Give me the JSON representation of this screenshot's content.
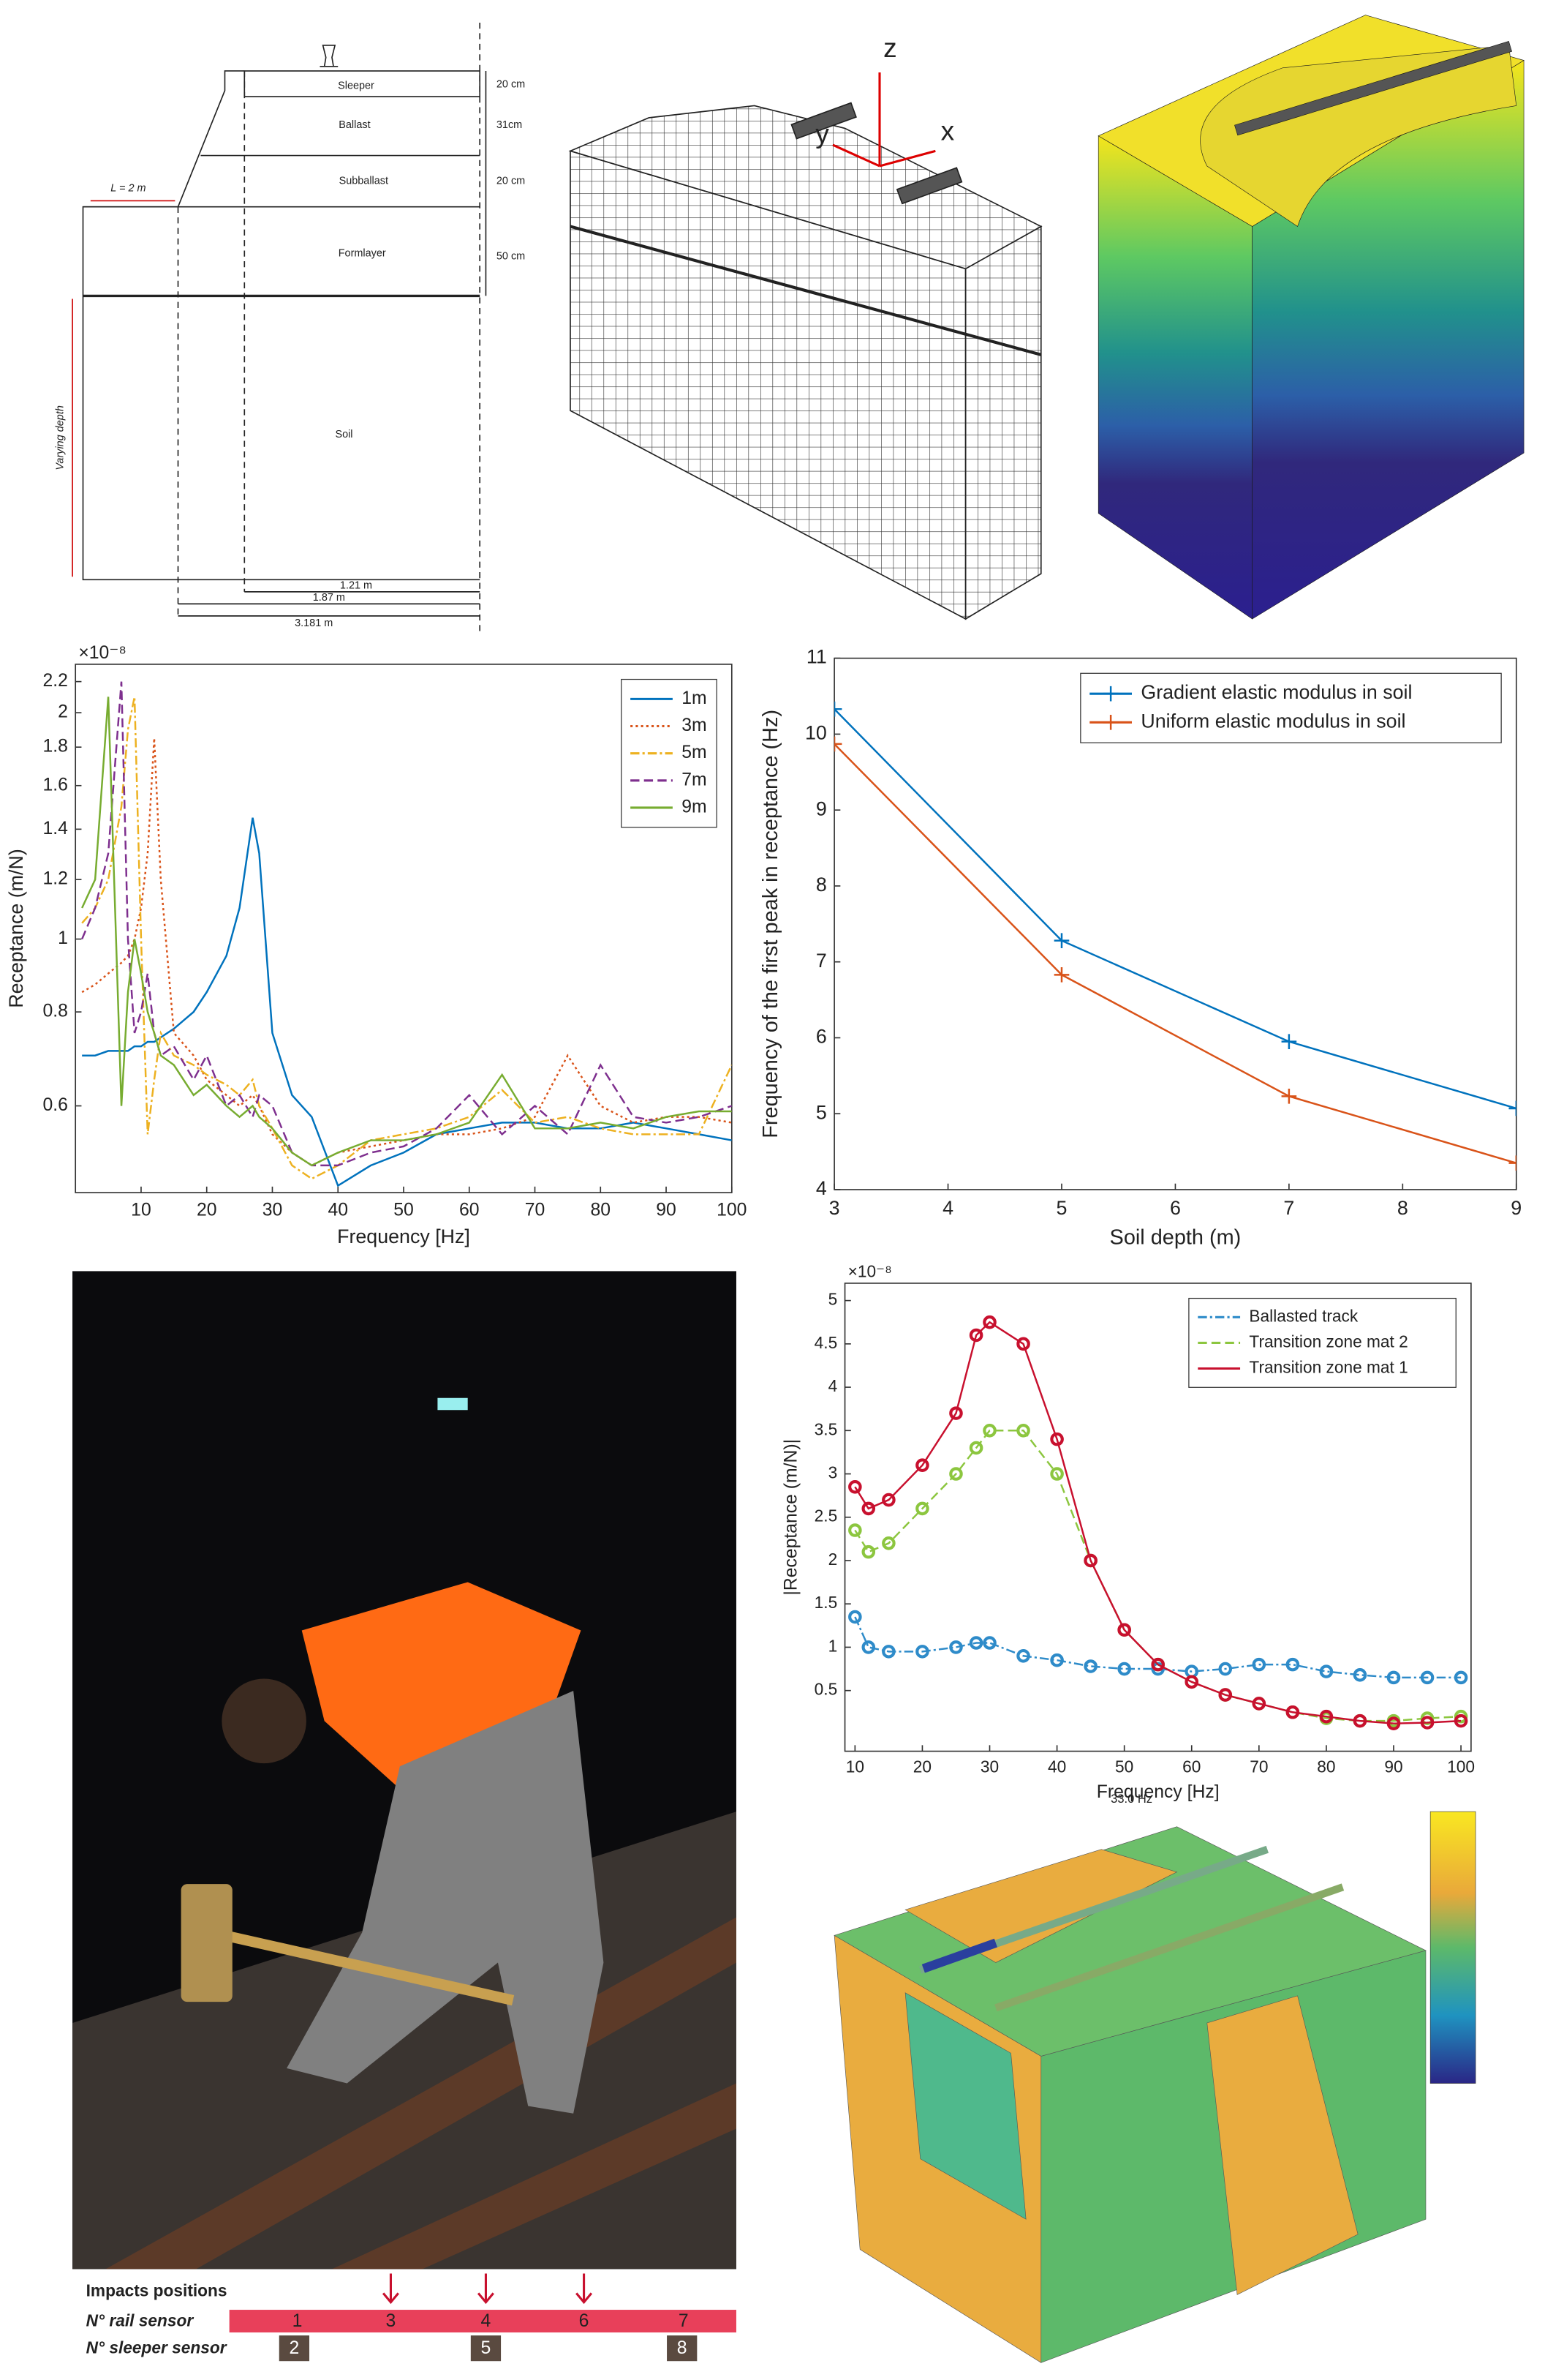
{
  "diagram": {
    "layers": [
      "Sleeper",
      "Ballast",
      "Subballast",
      "Formlayer",
      "Soil"
    ],
    "thicknesses": [
      "20 cm",
      "31cm",
      "20 cm",
      "50 cm"
    ],
    "length": "L = 2 m",
    "depth": "Varying depth",
    "widths": [
      "1.21 m",
      "1.87 m",
      "3.181 m"
    ]
  },
  "mesh_axes": [
    "z",
    "y",
    "x"
  ],
  "chart_data": [
    {
      "type": "line",
      "xlabel": "Frequency [Hz]",
      "ylabel": "Receptance (m/N)",
      "y_exponent": "×10⁻⁸",
      "yscale": "log",
      "x": [
        1,
        3,
        5,
        7,
        8,
        9,
        10,
        11,
        12,
        13,
        15,
        18,
        20,
        23,
        25,
        27,
        28,
        30,
        33,
        36,
        40,
        45,
        50,
        55,
        60,
        65,
        70,
        75,
        80,
        85,
        90,
        95,
        100
      ],
      "series": [
        {
          "name": "1m",
          "color": "#0072bd",
          "linestyle": "solid",
          "values": [
            0.7,
            0.7,
            0.71,
            0.71,
            0.71,
            0.72,
            0.72,
            0.73,
            0.73,
            0.74,
            0.76,
            0.8,
            0.85,
            0.95,
            1.1,
            1.45,
            1.3,
            0.75,
            0.62,
            0.58,
            0.47,
            0.5,
            0.52,
            0.55,
            0.56,
            0.57,
            0.57,
            0.56,
            0.56,
            0.57,
            0.56,
            0.55,
            0.54
          ]
        },
        {
          "name": "3m",
          "color": "#d95319",
          "linestyle": "dotted",
          "values": [
            0.85,
            0.87,
            0.9,
            0.93,
            0.95,
            1.0,
            1.1,
            1.3,
            1.85,
            1.2,
            0.75,
            0.7,
            0.65,
            0.62,
            0.6,
            0.62,
            0.6,
            0.55,
            0.52,
            0.5,
            0.52,
            0.53,
            0.54,
            0.55,
            0.55,
            0.56,
            0.58,
            0.7,
            0.6,
            0.57,
            0.58,
            0.58,
            0.57
          ]
        },
        {
          "name": "5m",
          "color": "#edb120",
          "linestyle": "dashdot",
          "values": [
            1.05,
            1.1,
            1.2,
            1.5,
            1.9,
            2.1,
            1.0,
            0.55,
            0.65,
            0.75,
            0.7,
            0.68,
            0.66,
            0.64,
            0.62,
            0.65,
            0.6,
            0.56,
            0.5,
            0.48,
            0.5,
            0.54,
            0.55,
            0.56,
            0.58,
            0.63,
            0.57,
            0.58,
            0.56,
            0.55,
            0.55,
            0.55,
            0.68
          ]
        },
        {
          "name": "7m",
          "color": "#7e2f8e",
          "linestyle": "dashed",
          "values": [
            1.0,
            1.1,
            1.3,
            2.2,
            1.0,
            0.75,
            0.8,
            0.9,
            0.75,
            0.7,
            0.72,
            0.65,
            0.7,
            0.6,
            0.62,
            0.58,
            0.62,
            0.6,
            0.52,
            0.5,
            0.5,
            0.52,
            0.53,
            0.56,
            0.62,
            0.55,
            0.6,
            0.55,
            0.68,
            0.58,
            0.57,
            0.58,
            0.6
          ]
        },
        {
          "name": "9m",
          "color": "#77ac30",
          "linestyle": "solid",
          "values": [
            1.1,
            1.2,
            2.1,
            0.6,
            0.85,
            1.0,
            0.9,
            0.8,
            0.75,
            0.7,
            0.68,
            0.62,
            0.64,
            0.6,
            0.58,
            0.6,
            0.58,
            0.56,
            0.52,
            0.5,
            0.52,
            0.54,
            0.54,
            0.55,
            0.57,
            0.66,
            0.56,
            0.56,
            0.57,
            0.56,
            0.58,
            0.59,
            0.59
          ]
        }
      ],
      "xlim": [
        0,
        100
      ],
      "xticks": [
        10,
        20,
        30,
        40,
        50,
        60,
        70,
        80,
        90,
        100
      ],
      "ylim": [
        0.46,
        2.32
      ],
      "yticks": [
        0.6,
        0.8,
        1,
        1.2,
        1.4,
        1.6,
        1.8,
        2,
        2.2
      ],
      "legend": "upper right"
    },
    {
      "type": "line",
      "xlabel": "Soil depth (m)",
      "ylabel": "Frequency of the first peak in receptance (Hz)",
      "x": [
        3,
        5,
        7,
        9
      ],
      "series": [
        {
          "name": "Gradient elastic modulus in soil",
          "color": "#0072bd",
          "linestyle": "solid",
          "marker": "+",
          "values": [
            10.33,
            7.28,
            5.95,
            5.07
          ]
        },
        {
          "name": "Uniform elastic modulus in soil",
          "color": "#d95319",
          "linestyle": "solid",
          "marker": "+",
          "values": [
            9.87,
            6.83,
            5.23,
            4.35
          ]
        }
      ],
      "xlim": [
        3,
        9
      ],
      "xticks": [
        3,
        4,
        5,
        6,
        7,
        8,
        9
      ],
      "ylim": [
        4,
        11
      ],
      "yticks": [
        4,
        5,
        6,
        7,
        8,
        9,
        10,
        11
      ],
      "legend": "upper right"
    },
    {
      "type": "line",
      "xlabel": "Frequency [Hz]",
      "ylabel": "|Receptance (m/N)|",
      "y_exponent": "×10⁻⁸",
      "x": [
        10,
        12,
        15,
        20,
        25,
        28,
        30,
        35,
        40,
        45,
        50,
        55,
        60,
        65,
        70,
        75,
        80,
        85,
        90,
        95,
        100
      ],
      "series": [
        {
          "name": "Ballasted track",
          "color": "#2e8bc9",
          "linestyle": "dashdot",
          "marker": "o",
          "values": [
            1.35,
            1.0,
            0.95,
            0.95,
            1.0,
            1.05,
            1.05,
            0.9,
            0.85,
            0.78,
            0.75,
            0.75,
            0.72,
            0.75,
            0.8,
            0.8,
            0.72,
            0.68,
            0.65,
            0.65,
            0.65
          ]
        },
        {
          "name": "Transition zone mat 2",
          "color": "#8cc63f",
          "linestyle": "dashed",
          "marker": "o",
          "values": [
            2.35,
            2.1,
            2.2,
            2.6,
            3.0,
            3.3,
            3.5,
            3.5,
            3.0,
            2.0,
            1.2,
            0.8,
            0.6,
            0.45,
            0.35,
            0.25,
            0.18,
            0.15,
            0.15,
            0.18,
            0.2
          ]
        },
        {
          "name": "Transition zone mat 1",
          "color": "#c8102e",
          "linestyle": "solid",
          "marker": "o",
          "values": [
            2.85,
            2.6,
            2.7,
            3.1,
            3.7,
            4.6,
            4.75,
            4.5,
            3.4,
            2.0,
            1.2,
            0.8,
            0.6,
            0.45,
            0.35,
            0.25,
            0.2,
            0.15,
            0.12,
            0.13,
            0.15
          ]
        }
      ],
      "xlim": [
        8.5,
        101.5
      ],
      "xticks": [
        10,
        20,
        30,
        40,
        50,
        60,
        70,
        80,
        90,
        100
      ],
      "ylim": [
        -0.2,
        5.2
      ],
      "yticks": [
        0.5,
        1,
        1.5,
        2,
        2.5,
        3,
        3.5,
        4,
        4.5,
        5
      ],
      "legend": "upper right"
    }
  ],
  "photo_legend": {
    "title": "Impacts positions",
    "rail_label": "N° rail sensor",
    "sleeper_label": "N° sleeper sensor",
    "rail_sensors": [
      "1",
      "3",
      "4",
      "6",
      "7"
    ],
    "sleeper_sensors": [
      "2",
      "5",
      "8"
    ]
  },
  "mode_shape": {
    "title": "33.0 Hz"
  }
}
